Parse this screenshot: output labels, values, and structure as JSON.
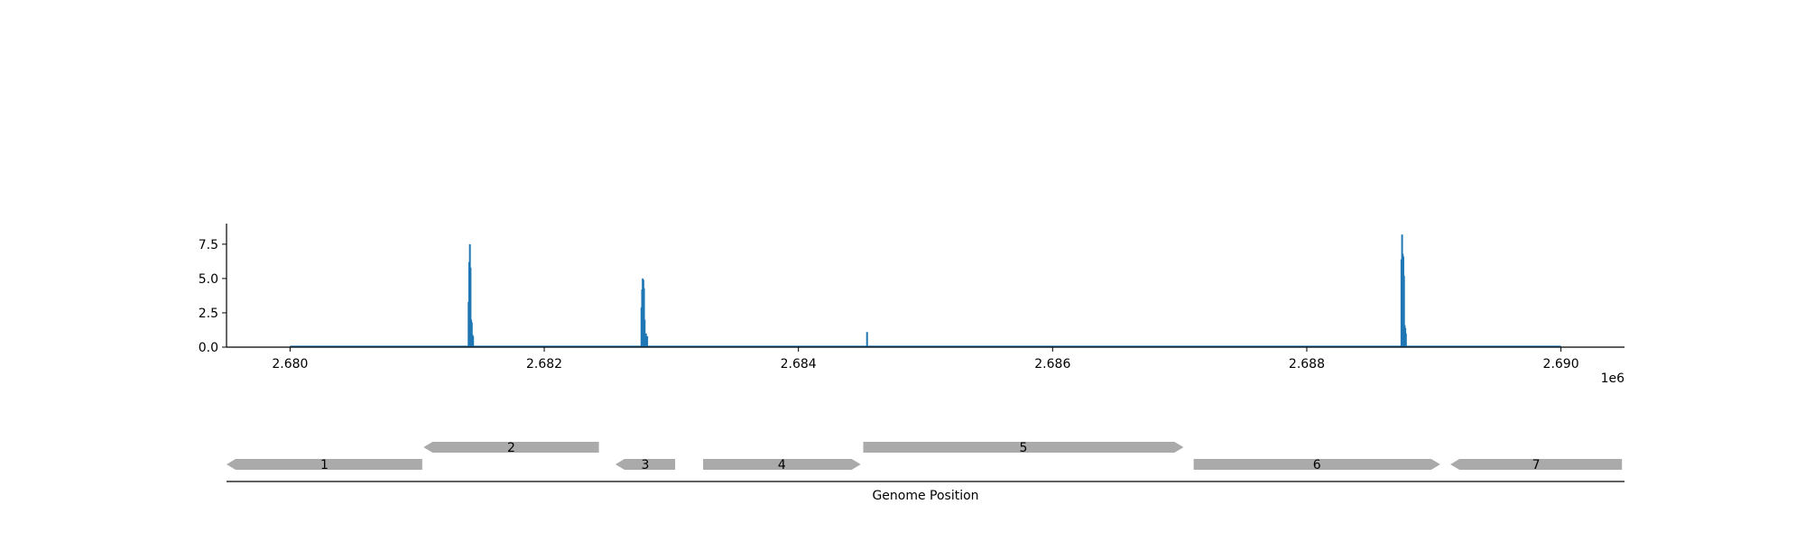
{
  "chart_data": {
    "type": "bar",
    "title": "",
    "xlabel": "Genome Position",
    "ylabel": "",
    "x_offset_label": "1e6",
    "xlim": [
      2679500,
      2690500
    ],
    "ylim": [
      0,
      9
    ],
    "x_ticks": [
      {
        "value": 2680000,
        "label": "2.680"
      },
      {
        "value": 2682000,
        "label": "2.682"
      },
      {
        "value": 2684000,
        "label": "2.684"
      },
      {
        "value": 2686000,
        "label": "2.686"
      },
      {
        "value": 2688000,
        "label": "2.688"
      },
      {
        "value": 2690000,
        "label": "2.690"
      }
    ],
    "y_ticks": [
      {
        "value": 0,
        "label": "0.0"
      },
      {
        "value": 2.5,
        "label": "2.5"
      },
      {
        "value": 5,
        "label": "5.0"
      },
      {
        "value": 7.5,
        "label": "7.5"
      }
    ],
    "baseline_range": [
      2680000,
      2690000
    ],
    "bar_color": "#1f77b4",
    "points": [
      {
        "x": 2681405,
        "y": 3.3
      },
      {
        "x": 2681410,
        "y": 6.2
      },
      {
        "x": 2681415,
        "y": 7.5
      },
      {
        "x": 2681420,
        "y": 5.8
      },
      {
        "x": 2681425,
        "y": 2.0
      },
      {
        "x": 2681430,
        "y": 1.8
      },
      {
        "x": 2681435,
        "y": 0.9
      },
      {
        "x": 2681440,
        "y": 0.8
      },
      {
        "x": 2682765,
        "y": 2.9
      },
      {
        "x": 2682770,
        "y": 4.2
      },
      {
        "x": 2682775,
        "y": 5.0
      },
      {
        "x": 2682780,
        "y": 4.9
      },
      {
        "x": 2682785,
        "y": 4.3
      },
      {
        "x": 2682790,
        "y": 2.0
      },
      {
        "x": 2682800,
        "y": 1.0
      },
      {
        "x": 2682810,
        "y": 0.8
      },
      {
        "x": 2684540,
        "y": 1.1
      },
      {
        "x": 2688745,
        "y": 6.4
      },
      {
        "x": 2688750,
        "y": 8.2
      },
      {
        "x": 2688755,
        "y": 6.8
      },
      {
        "x": 2688760,
        "y": 6.6
      },
      {
        "x": 2688765,
        "y": 5.2
      },
      {
        "x": 2688770,
        "y": 1.6
      },
      {
        "x": 2688775,
        "y": 1.4
      },
      {
        "x": 2688780,
        "y": 1.0
      }
    ],
    "gene_color": "#aaaaaa",
    "genes": [
      {
        "label": "1",
        "start": 2679500,
        "end": 2681040,
        "strand": "-",
        "track": 0
      },
      {
        "label": "2",
        "start": 2681050,
        "end": 2682430,
        "strand": "-",
        "track": 1
      },
      {
        "label": "3",
        "start": 2682560,
        "end": 2683030,
        "strand": "-",
        "track": 0
      },
      {
        "label": "4",
        "start": 2683250,
        "end": 2684490,
        "strand": "+",
        "track": 0
      },
      {
        "label": "5",
        "start": 2684510,
        "end": 2687030,
        "strand": "+",
        "track": 1
      },
      {
        "label": "6",
        "start": 2687110,
        "end": 2689050,
        "strand": "+",
        "track": 0
      },
      {
        "label": "7",
        "start": 2689130,
        "end": 2690480,
        "strand": "-",
        "track": 0
      }
    ]
  }
}
